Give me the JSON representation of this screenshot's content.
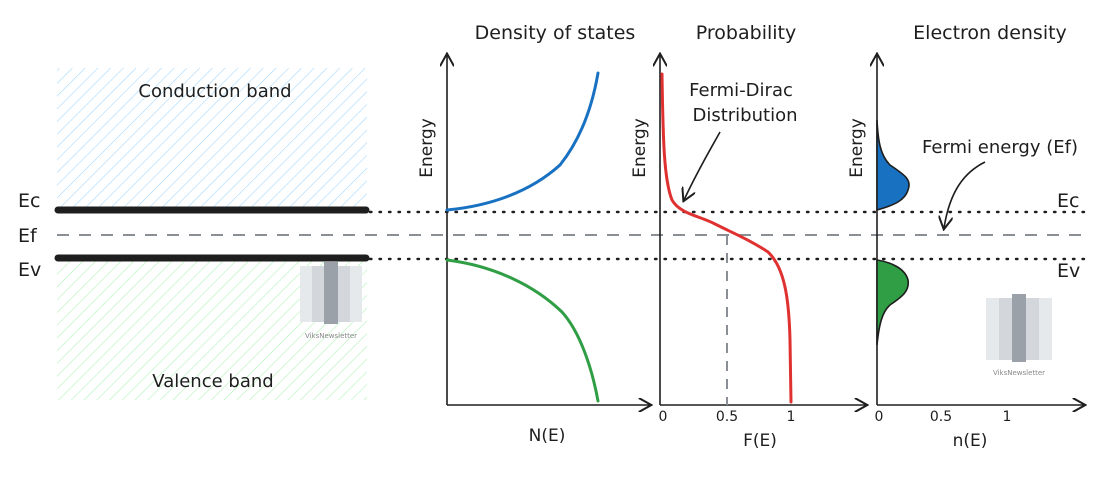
{
  "colors": {
    "conduction": "#1971c2",
    "valence": "#2f9e44",
    "fermi_dirac": "#e03131",
    "ink": "#1e1e1e",
    "dashed": "#8a8f96",
    "hatch_blue": "#a5d8ff",
    "hatch_green": "#b2f2bb"
  },
  "band_diagram": {
    "conduction_label": "Conduction band",
    "valence_label": "Valence band",
    "ec_label": "Ec",
    "ef_label": "Ef",
    "ev_label": "Ev",
    "watermark": "ViksNewsletter"
  },
  "panels": {
    "dos": {
      "title": "Density of states",
      "ylabel": "Energy",
      "xlabel": "N(E)"
    },
    "probability": {
      "title": "Probability",
      "ylabel": "Energy",
      "xlabel": "F(E)",
      "annotation_line1": "Fermi-Dirac",
      "annotation_line2": "Distribution",
      "ticks": [
        "0",
        "0.5",
        "1"
      ]
    },
    "electron": {
      "title": "Electron density",
      "ylabel": "Energy",
      "xlabel": "n(E)",
      "annotation": "Fermi energy (Ef)",
      "ticks": [
        "0",
        "0.5",
        "1"
      ],
      "ec_label": "Ec",
      "ev_label": "Ev",
      "watermark": "ViksNewsletter"
    }
  }
}
